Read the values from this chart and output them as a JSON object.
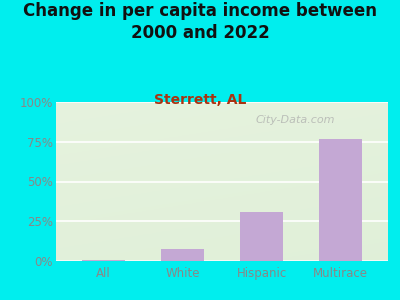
{
  "title": "Change in per capita income between\n2000 and 2022",
  "subtitle": "Sterrett, AL",
  "categories": [
    "All",
    "White",
    "Hispanic",
    "Multirace"
  ],
  "values": [
    0.5,
    7.5,
    31.0,
    77.0
  ],
  "bar_color": "#C4A8D4",
  "background_color": "#00EEEE",
  "plot_bg_color": "#e8f2e0",
  "title_color": "#111111",
  "subtitle_color": "#AA3311",
  "tick_label_color": "#888888",
  "ytick_labels": [
    "0%",
    "25%",
    "50%",
    "75%",
    "100%"
  ],
  "ytick_values": [
    0,
    25,
    50,
    75,
    100
  ],
  "ylim": [
    0,
    100
  ],
  "watermark": "City-Data.com",
  "title_fontsize": 12,
  "subtitle_fontsize": 10
}
